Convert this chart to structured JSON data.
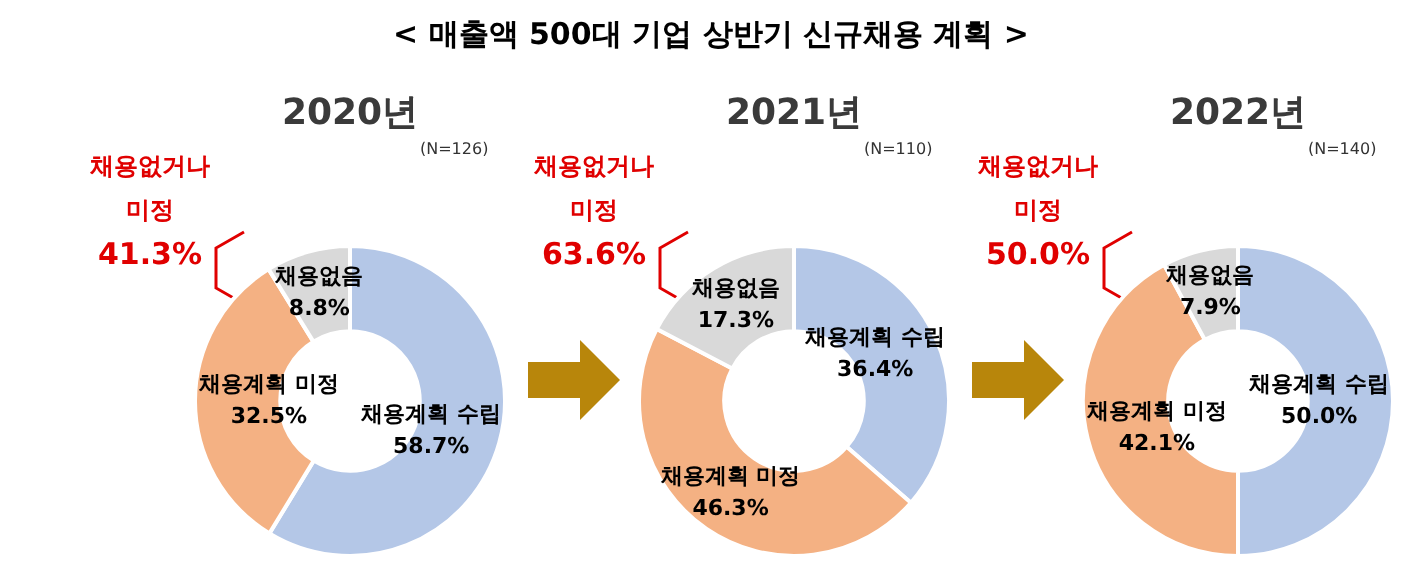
{
  "chart_data": [
    {
      "type": "donut",
      "title": "2020년",
      "annotations": [
        "< 매출액 500대 기업 상반기 신규채용 계획 >",
        "(N=126)",
        "채용없거나",
        "미정",
        "41.3%"
      ],
      "categories": [
        "채용계획 수립",
        "채용계획 미정",
        "채용없음"
      ],
      "values": [
        58.7,
        32.5,
        8.8
      ],
      "value_labels": [
        "58.7%",
        "32.5%",
        "8.8%"
      ],
      "colors": [
        "#b4c7e7",
        "#f4b183",
        "#d9d9d9"
      ],
      "legend": false
    },
    {
      "type": "donut",
      "title": "2021년",
      "annotations": [
        "(N=110)",
        "채용없거나",
        "미정",
        "63.6%"
      ],
      "categories": [
        "채용계획 수립",
        "채용계획 미정",
        "채용없음"
      ],
      "values": [
        36.4,
        46.3,
        17.3
      ],
      "value_labels": [
        "36.4%",
        "46.3%",
        "17.3%"
      ],
      "colors": [
        "#b4c7e7",
        "#f4b183",
        "#d9d9d9"
      ],
      "legend": false
    },
    {
      "type": "donut",
      "title": "2022년",
      "annotations": [
        "(N=140)",
        "채용없거나",
        "미정",
        "50.0%"
      ],
      "categories": [
        "채용계획 수립",
        "채용계획 미정",
        "채용없음"
      ],
      "values": [
        50.0,
        42.1,
        7.9
      ],
      "value_labels": [
        "50.0%",
        "42.1%",
        "7.9%"
      ],
      "colors": [
        "#b4c7e7",
        "#f4b183",
        "#d9d9d9"
      ],
      "legend": false
    }
  ]
}
